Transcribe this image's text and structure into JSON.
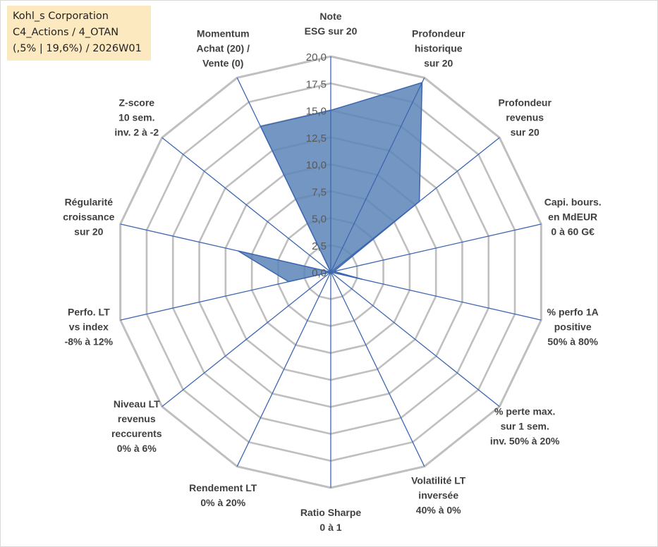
{
  "info": {
    "company": "Kohl_s Corporation",
    "portfolio": "C4_Actions / 4_OTAN",
    "stats": "(,5% | 19,6%) / 2026W01"
  },
  "chart_data": {
    "type": "radar",
    "title": "",
    "rmin": 0,
    "rmax": 20,
    "tick_step": 2.5,
    "tick_labels": [
      "0,0",
      "2,5",
      "5,0",
      "7,5",
      "10,0",
      "12,5",
      "15,0",
      "17,5",
      "20,0"
    ],
    "categories": [
      [
        "Note",
        "ESG sur 20"
      ],
      [
        "Profondeur",
        "historique",
        "sur 20"
      ],
      [
        "Profondeur",
        "revenus",
        "sur 20"
      ],
      [
        "Capi. bours.",
        "en MdEUR",
        "0 à 60 G€"
      ],
      [
        "% perfo 1A",
        "positive",
        "50% à 80%"
      ],
      [
        "% perte max.",
        "sur 1 sem.",
        "inv. 50% à 20%"
      ],
      [
        "Volatilité LT",
        "inversée",
        "40% à 0%"
      ],
      [
        "Ratio Sharpe",
        "0 à 1"
      ],
      [
        "Rendement LT",
        "0% à 20%"
      ],
      [
        "Niveau LT",
        "revenus",
        "reccurents",
        "0% à 6%"
      ],
      [
        "Perfo. LT",
        "vs index",
        "-8% à 12%"
      ],
      [
        "Régularité",
        "croissance",
        "sur 20"
      ],
      [
        "Z-score",
        "10 sem.",
        "inv. 2 à -2"
      ],
      [
        "Momentum",
        "Achat (20) /",
        "Vente (0)"
      ]
    ],
    "series": [
      {
        "name": "Kohl_s Corporation",
        "color": "#5b84b8",
        "values": [
          15.0,
          19.5,
          10.5,
          0.3,
          3.0,
          0.0,
          0.0,
          0.0,
          0.0,
          0.0,
          4.0,
          8.8,
          0.0,
          15.0
        ]
      }
    ],
    "grid_color": "#bfbfbf",
    "axis_color": "#3c67b0"
  }
}
